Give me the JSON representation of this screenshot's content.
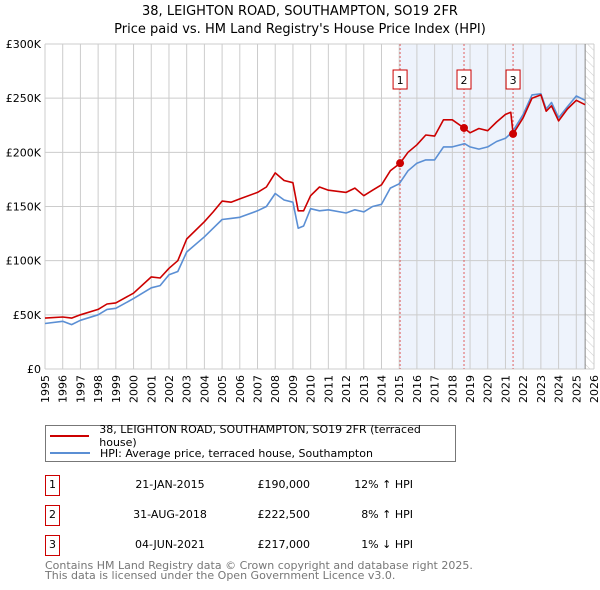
{
  "title": "38, LEIGHTON ROAD, SOUTHAMPTON, SO19 2FR",
  "subtitle": "Price paid vs. HM Land Registry's House Price Index (HPI)",
  "chart_data": {
    "type": "line",
    "xlim": [
      1995,
      2026
    ],
    "ylim": [
      0,
      300000
    ],
    "x_ticks": [
      "1995",
      "1996",
      "1997",
      "1998",
      "1999",
      "2000",
      "2001",
      "2002",
      "2003",
      "2004",
      "2005",
      "2006",
      "2007",
      "2008",
      "2009",
      "2010",
      "2011",
      "2012",
      "2013",
      "2014",
      "2015",
      "2016",
      "2017",
      "2018",
      "2019",
      "2020",
      "2021",
      "2022",
      "2023",
      "2024",
      "2025",
      "2026"
    ],
    "y_ticks": [
      {
        "v": 0,
        "label": "£0"
      },
      {
        "v": 50000,
        "label": "£50K"
      },
      {
        "v": 100000,
        "label": "£100K"
      },
      {
        "v": 150000,
        "label": "£150K"
      },
      {
        "v": 200000,
        "label": "£200K"
      },
      {
        "v": 250000,
        "label": "£250K"
      },
      {
        "v": 300000,
        "label": "£300K"
      }
    ],
    "grid": true,
    "shaded_from": 2015.05,
    "forecast_hatch_from": 2025.5,
    "series": [
      {
        "name": "38, LEIGHTON ROAD, SOUTHAMPTON, SO19 2FR (terraced house)",
        "color": "#cc0000",
        "x": [
          1995,
          1996,
          1996.5,
          1997,
          1998,
          1998.5,
          1999,
          2000,
          2001,
          2001.5,
          2002,
          2002.5,
          2003,
          2004,
          2004.5,
          2005,
          2005.5,
          2006,
          2007,
          2007.5,
          2008,
          2008.5,
          2009,
          2009.3,
          2009.6,
          2010,
          2010.5,
          2011,
          2012,
          2012.5,
          2013,
          2013.5,
          2014,
          2014.5,
          2015.05,
          2015.5,
          2016,
          2016.5,
          2017,
          2017.5,
          2018,
          2018.66,
          2019,
          2019.5,
          2020,
          2020.5,
          2021,
          2021.3,
          2021.43,
          2022,
          2022.5,
          2023,
          2023.3,
          2023.6,
          2024,
          2024.5,
          2025,
          2025.5
        ],
        "y": [
          47000,
          48000,
          47000,
          50000,
          55000,
          60000,
          61000,
          70000,
          85000,
          84000,
          93000,
          100000,
          120000,
          136000,
          145000,
          155000,
          154000,
          157000,
          163000,
          168000,
          181000,
          174000,
          172000,
          146000,
          146000,
          160000,
          168000,
          165000,
          163000,
          167000,
          160000,
          165000,
          170000,
          183000,
          190000,
          200000,
          207000,
          216000,
          215000,
          230000,
          230000,
          222500,
          218000,
          222000,
          220000,
          228000,
          235000,
          237000,
          217000,
          232000,
          250000,
          253000,
          238000,
          243000,
          229000,
          240000,
          248000,
          244000
        ]
      },
      {
        "name": "HPI: Average price, terraced house, Southampton",
        "color": "#5b8fd4",
        "x": [
          1995,
          1996,
          1996.5,
          1997,
          1998,
          1998.5,
          1999,
          2000,
          2001,
          2001.5,
          2002,
          2002.5,
          2003,
          2004,
          2004.5,
          2005,
          2005.5,
          2006,
          2007,
          2007.5,
          2008,
          2008.5,
          2009,
          2009.3,
          2009.6,
          2010,
          2010.5,
          2011,
          2012,
          2012.5,
          2013,
          2013.5,
          2014,
          2014.5,
          2015,
          2015.5,
          2016,
          2016.5,
          2017,
          2017.5,
          2018,
          2018.7,
          2019,
          2019.5,
          2020,
          2020.5,
          2021,
          2021.4,
          2022,
          2022.5,
          2023,
          2023.3,
          2023.6,
          2024,
          2024.5,
          2025,
          2025.5
        ],
        "y": [
          42000,
          44000,
          41000,
          45000,
          50000,
          55000,
          56000,
          65000,
          75000,
          77000,
          87000,
          90000,
          108000,
          122000,
          130000,
          138000,
          139000,
          140000,
          146000,
          150000,
          162000,
          156000,
          154000,
          130000,
          132000,
          148000,
          146000,
          147000,
          144000,
          147000,
          145000,
          150000,
          152000,
          167000,
          171000,
          183000,
          190000,
          193000,
          193000,
          205000,
          205000,
          208000,
          205000,
          203000,
          205000,
          210000,
          213000,
          219000,
          235000,
          253000,
          254000,
          240000,
          246000,
          232000,
          242000,
          252000,
          248000
        ]
      }
    ],
    "sales": [
      {
        "id": "1",
        "x": 2015.05,
        "y": 190000
      },
      {
        "id": "2",
        "x": 2018.66,
        "y": 222500
      },
      {
        "id": "3",
        "x": 2021.43,
        "y": 217000
      }
    ]
  },
  "legend": {
    "property": "38, LEIGHTON ROAD, SOUTHAMPTON, SO19 2FR (terraced house)",
    "hpi": "HPI: Average price, terraced house, Southampton"
  },
  "transactions": [
    {
      "num": "1",
      "date": "21-JAN-2015",
      "price": "£190,000",
      "hpi": "12% ↑ HPI"
    },
    {
      "num": "2",
      "date": "31-AUG-2018",
      "price": "£222,500",
      "hpi": "8% ↑ HPI"
    },
    {
      "num": "3",
      "date": "04-JUN-2021",
      "price": "£217,000",
      "hpi": "1% ↓ HPI"
    }
  ],
  "footer": {
    "line1": "Contains HM Land Registry data © Crown copyright and database right 2025.",
    "line2": "This data is licensed under the Open Government Licence v3.0."
  }
}
